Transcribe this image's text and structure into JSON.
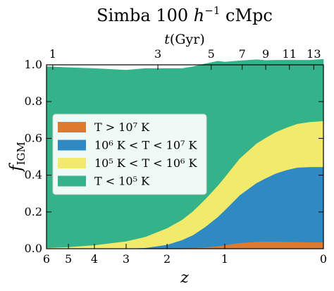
{
  "chart_data": {
    "type": "area",
    "stacked": true,
    "title": "Simba 100 h⁻¹ cMpc",
    "title_parts": {
      "main": "Simba 100 ",
      "h": "h",
      "exp": "−1",
      "tail": " cMpc"
    },
    "xlabel": "z",
    "ylabel": "f",
    "ylabel_sub": "IGM",
    "top_axis_label": "t(Gyr)",
    "xscale": "log(1+z)",
    "xlim": [
      6,
      0
    ],
    "ylim": [
      0,
      1.0
    ],
    "x_ticks": [
      6,
      5,
      4,
      3,
      2,
      1,
      0
    ],
    "x_tick_labels": [
      "6",
      "5",
      "4",
      "3",
      "2",
      "1",
      "0"
    ],
    "y_ticks": [
      0.0,
      0.2,
      0.4,
      0.6,
      0.8,
      1.0
    ],
    "y_tick_labels": [
      "0.0",
      "0.2",
      "0.4",
      "0.6",
      "0.8",
      "1.0"
    ],
    "top_ticks": [
      {
        "label": "1",
        "z": 5.7
      },
      {
        "label": "3",
        "z": 2.2
      },
      {
        "label": "5",
        "z": 1.2
      },
      {
        "label": "7",
        "z": 0.77
      },
      {
        "label": "9",
        "z": 0.5
      },
      {
        "label": "11",
        "z": 0.27
      },
      {
        "label": "13",
        "z": 0.07
      }
    ],
    "grid": false,
    "legend_position": "center-left",
    "legend": [
      {
        "key": "hot",
        "label": "T > 10⁷ K",
        "color": "#dd7a30"
      },
      {
        "key": "warmhot",
        "label": "10⁶ K < T < 10⁷ K",
        "color": "#2f8ac4"
      },
      {
        "key": "warm",
        "label": "10⁵ K < T < 10⁶ K",
        "color": "#f2ea6b"
      },
      {
        "key": "diffuse",
        "label": "T < 10⁵ K",
        "color": "#34b38a"
      }
    ],
    "z": [
      6,
      5,
      4,
      3,
      2.5,
      2,
      1.7,
      1.5,
      1.3,
      1.1,
      1.0,
      0.8,
      0.6,
      0.5,
      0.4,
      0.3,
      0.2,
      0.1,
      0
    ],
    "series": [
      {
        "key": "hot",
        "color": "#dd7a30",
        "values": [
          0,
          0,
          0,
          0,
          0.001,
          0.002,
          0.003,
          0.005,
          0.008,
          0.014,
          0.02,
          0.032,
          0.038,
          0.039,
          0.039,
          0.038,
          0.037,
          0.035,
          0.035
        ]
      },
      {
        "key": "warmhot",
        "color": "#2f8ac4",
        "values": [
          0,
          0,
          0,
          0.001,
          0.004,
          0.02,
          0.045,
          0.07,
          0.11,
          0.16,
          0.19,
          0.26,
          0.32,
          0.345,
          0.37,
          0.39,
          0.405,
          0.41,
          0.41
        ]
      },
      {
        "key": "warm",
        "color": "#f2ea6b",
        "values": [
          0.005,
          0.01,
          0.02,
          0.04,
          0.06,
          0.09,
          0.11,
          0.13,
          0.15,
          0.17,
          0.18,
          0.2,
          0.215,
          0.22,
          0.225,
          0.23,
          0.238,
          0.245,
          0.25
        ]
      },
      {
        "key": "diffuse",
        "color": "#34b38a",
        "values": [
          0.985,
          0.975,
          0.96,
          0.93,
          0.915,
          0.868,
          0.822,
          0.785,
          0.737,
          0.676,
          0.625,
          0.53,
          0.455,
          0.42,
          0.391,
          0.367,
          0.345,
          0.335,
          0.335
        ]
      }
    ]
  }
}
